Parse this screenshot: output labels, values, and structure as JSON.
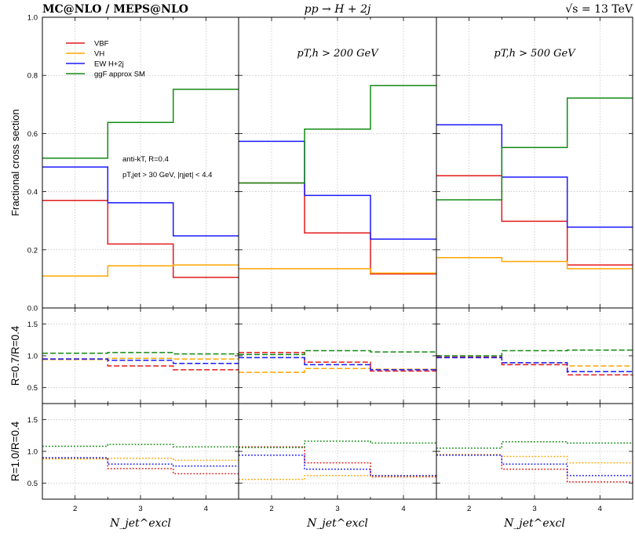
{
  "header": {
    "left": "MC@NLO / MEPS@NLO",
    "center": "pp → H + 2j",
    "right": "√s = 13 TeV"
  },
  "chart_data": {
    "type": "line",
    "step": true,
    "x_bins": [
      [
        1.5,
        2.5
      ],
      [
        2.5,
        3.5
      ],
      [
        3.5,
        4.5
      ]
    ],
    "x_ticks": [
      "2",
      "3",
      "4"
    ],
    "xlabel": "N_jet^excl",
    "colors": {
      "VBF": "#e41a1c",
      "VH": "#ffa500",
      "EW H+2j": "#1a1aff",
      "ggF approx SM": "#138a13"
    },
    "legend": [
      "VBF",
      "VH",
      "EW H+2j",
      "ggF approx SM"
    ],
    "rows": [
      {
        "ylabel": "Fractional cross section",
        "ylim": [
          0,
          1.0
        ],
        "yticks": [
          "0.0",
          "0.2",
          "0.4",
          "0.6",
          "0.8",
          "1.0"
        ],
        "style": "solid"
      },
      {
        "ylabel": "R=0.7/R=0.4",
        "ylim": [
          0.25,
          1.75
        ],
        "yticks": [
          "0.5",
          "1.0",
          "1.5"
        ],
        "style": "dashed"
      },
      {
        "ylabel": "R=1.0/R=0.4",
        "ylim": [
          0.25,
          1.75
        ],
        "yticks": [
          "0.5",
          "1.0",
          "1.5"
        ],
        "style": "dotted"
      }
    ],
    "columns": [
      {
        "cut": "",
        "annotations": [
          "anti-kT, R=0.4",
          "pT,jet > 30 GeV, |ηjet| < 4.4"
        ],
        "fraction": {
          "VBF": [
            0.37,
            0.22,
            0.105
          ],
          "VH": [
            0.11,
            0.145,
            0.148
          ],
          "EW H+2j": [
            0.485,
            0.362,
            0.248
          ],
          "ggF approx SM": [
            0.515,
            0.638,
            0.752
          ]
        },
        "ratio_R07": {
          "VBF": [
            0.95,
            0.84,
            0.78
          ],
          "VH": [
            0.94,
            0.96,
            0.95
          ],
          "EW H+2j": [
            0.95,
            0.93,
            0.88
          ],
          "ggF approx SM": [
            1.04,
            1.05,
            1.03
          ]
        },
        "ratio_R10": {
          "VBF": [
            0.89,
            0.73,
            0.65
          ],
          "VH": [
            0.88,
            0.89,
            0.86
          ],
          "EW H+2j": [
            0.9,
            0.8,
            0.77
          ],
          "ggF approx SM": [
            1.08,
            1.11,
            1.07
          ]
        }
      },
      {
        "cut": "pT,h > 200 GeV",
        "annotations": [],
        "fraction": {
          "VBF": [
            0.43,
            0.258,
            0.117
          ],
          "VH": [
            0.135,
            0.135,
            0.12
          ],
          "EW H+2j": [
            0.573,
            0.387,
            0.237
          ],
          "ggF approx SM": [
            0.43,
            0.615,
            0.765
          ]
        },
        "ratio_R07": {
          "VBF": [
            1.05,
            0.9,
            0.76
          ],
          "VH": [
            0.74,
            0.8,
            0.79
          ],
          "EW H+2j": [
            0.97,
            0.86,
            0.78
          ],
          "ggF approx SM": [
            1.02,
            1.08,
            1.06
          ]
        },
        "ratio_R10": {
          "VBF": [
            1.07,
            0.82,
            0.6
          ],
          "VH": [
            0.56,
            0.62,
            0.61
          ],
          "EW H+2j": [
            0.94,
            0.72,
            0.62
          ],
          "ggF approx SM": [
            1.06,
            1.16,
            1.13
          ]
        }
      },
      {
        "cut": "pT,h > 500 GeV",
        "annotations": [],
        "fraction": {
          "VBF": [
            0.455,
            0.298,
            0.148
          ],
          "VH": [
            0.173,
            0.16,
            0.135
          ],
          "EW H+2j": [
            0.63,
            0.45,
            0.278
          ],
          "ggF approx SM": [
            0.372,
            0.552,
            0.722
          ]
        },
        "ratio_R07": {
          "VBF": [
            0.98,
            0.86,
            0.7
          ],
          "VH": [
            0.97,
            0.89,
            0.84
          ],
          "EW H+2j": [
            0.97,
            0.89,
            0.75
          ],
          "ggF approx SM": [
            1.0,
            1.08,
            1.09
          ]
        },
        "ratio_R10": {
          "VBF": [
            0.95,
            0.72,
            0.52
          ],
          "VH": [
            0.95,
            0.92,
            0.82
          ],
          "EW H+2j": [
            0.94,
            0.8,
            0.62
          ],
          "ggF approx SM": [
            1.05,
            1.15,
            1.13
          ]
        }
      }
    ]
  }
}
